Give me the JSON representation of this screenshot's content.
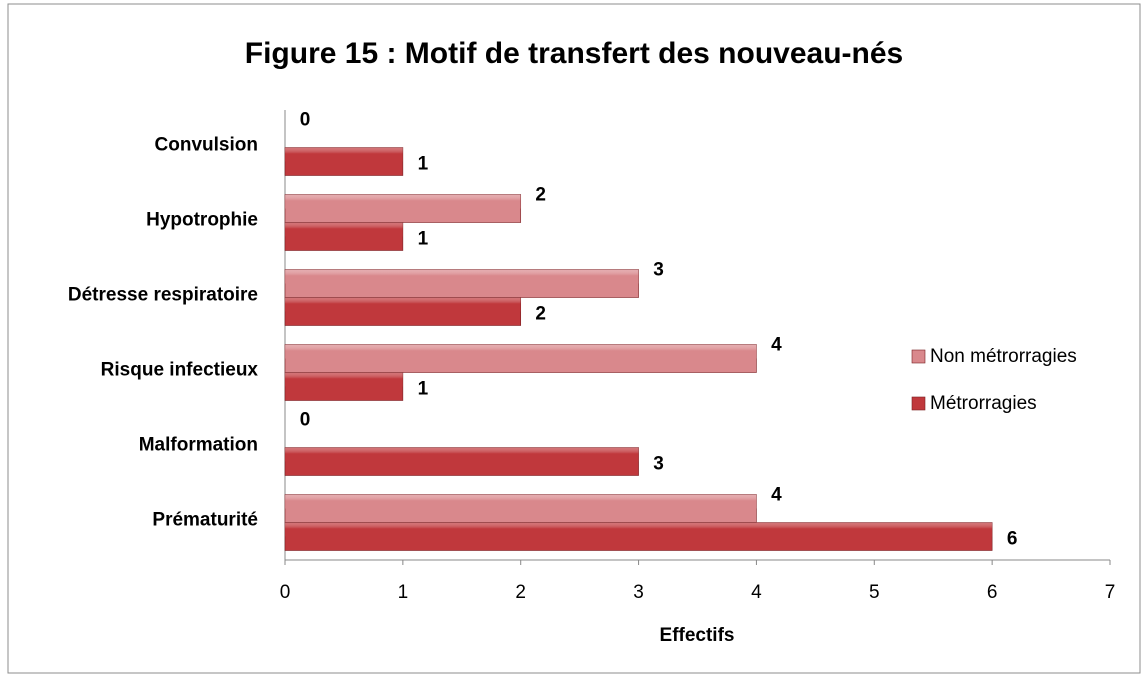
{
  "chart_data": {
    "type": "bar",
    "orientation": "horizontal",
    "title": "Figure 15 : Motif de transfert des nouveau-nés",
    "x_label": "Effectifs",
    "categories": [
      "Convulsion",
      "Hypotrophie",
      "Détresse respiratoire",
      "Risque infectieux",
      "Malformation",
      "Prématurité"
    ],
    "series": [
      {
        "name": "Non métrorragies",
        "color": "#d9888c",
        "values": [
          0,
          2,
          3,
          4,
          0,
          4
        ]
      },
      {
        "name": "Métrorragies",
        "color": "#c0383c",
        "values": [
          1,
          1,
          2,
          1,
          3,
          6
        ]
      }
    ],
    "xlim": [
      0,
      7
    ],
    "xticks": [
      0,
      1,
      2,
      3,
      4,
      5,
      6,
      7
    ],
    "legend": "right"
  }
}
